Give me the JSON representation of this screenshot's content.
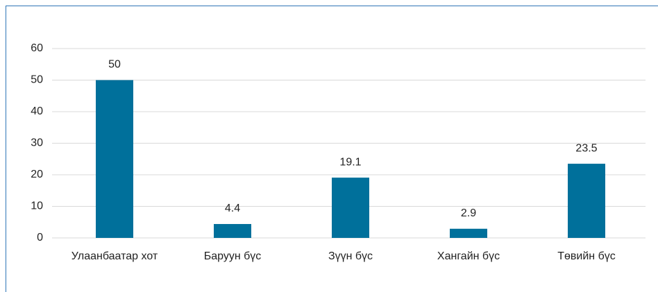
{
  "chart_data": {
    "type": "bar",
    "categories": [
      "Улаанбаатар хот",
      "Баруун бүс",
      "Зүүн бүс",
      "Хангайн бүс",
      "Төвийн бүс"
    ],
    "values": [
      50,
      4.4,
      19.1,
      2.9,
      23.5
    ],
    "color": "#00709b",
    "ylim": [
      0,
      60
    ],
    "yticks": [
      0,
      10,
      20,
      30,
      40,
      50,
      60
    ],
    "grid": true,
    "data_labels": true
  }
}
